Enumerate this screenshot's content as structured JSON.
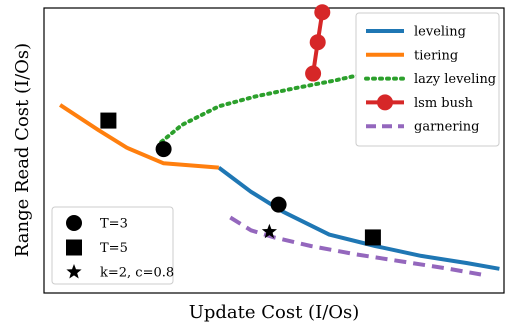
{
  "chart_data": {
    "type": "line",
    "xlabel": "Update Cost (I/Os)",
    "ylabel": "Range Read Cost (I/Os)",
    "xlim": [
      0,
      100
    ],
    "ylim": [
      0,
      100
    ],
    "grid": false,
    "legend_position": "top-right",
    "series": [
      {
        "name": "leveling",
        "color": "#1f77b4",
        "style": "solid",
        "points": [
          [
            38,
            44
          ],
          [
            45,
            35.5
          ],
          [
            52,
            28.5
          ],
          [
            62,
            20.5
          ],
          [
            72,
            16.5
          ],
          [
            82,
            13
          ],
          [
            92,
            10.5
          ],
          [
            99,
            8.5
          ]
        ]
      },
      {
        "name": "tiering",
        "color": "#ff7f0e",
        "style": "solid",
        "points": [
          [
            3.5,
            66
          ],
          [
            12,
            57
          ],
          [
            18,
            51
          ],
          [
            26,
            45.5
          ],
          [
            38,
            44
          ]
        ]
      },
      {
        "name": "lazy leveling",
        "color": "#2ca02c",
        "style": "dotted",
        "points": [
          [
            25.5,
            53
          ],
          [
            30,
            59
          ],
          [
            38,
            65.5
          ],
          [
            46,
            69
          ],
          [
            55,
            72
          ],
          [
            63,
            74.5
          ],
          [
            68.5,
            76.5
          ]
        ]
      },
      {
        "name": "lsm bush",
        "color": "#d62728",
        "style": "solid-marker",
        "points": [
          [
            58.5,
            77
          ],
          [
            59.5,
            88
          ],
          [
            60.5,
            98.5
          ]
        ]
      },
      {
        "name": "garnering",
        "color": "#9467bd",
        "style": "dashed",
        "points": [
          [
            40.5,
            26.5
          ],
          [
            45,
            22
          ],
          [
            50,
            19.5
          ],
          [
            58,
            16.5
          ],
          [
            68,
            13.5
          ],
          [
            78,
            11
          ],
          [
            88,
            8.5
          ],
          [
            95,
            6.5
          ]
        ]
      }
    ],
    "markers": [
      {
        "label": "T=3",
        "shape": "circle",
        "points": [
          [
            26,
            50.5
          ],
          [
            51,
            31
          ]
        ]
      },
      {
        "label": "T=5",
        "shape": "square",
        "points": [
          [
            14,
            60.5
          ],
          [
            71.5,
            19.5
          ]
        ]
      },
      {
        "label": "k=2, c=0.8",
        "shape": "star",
        "points": [
          [
            49,
            21.5
          ]
        ]
      }
    ]
  }
}
